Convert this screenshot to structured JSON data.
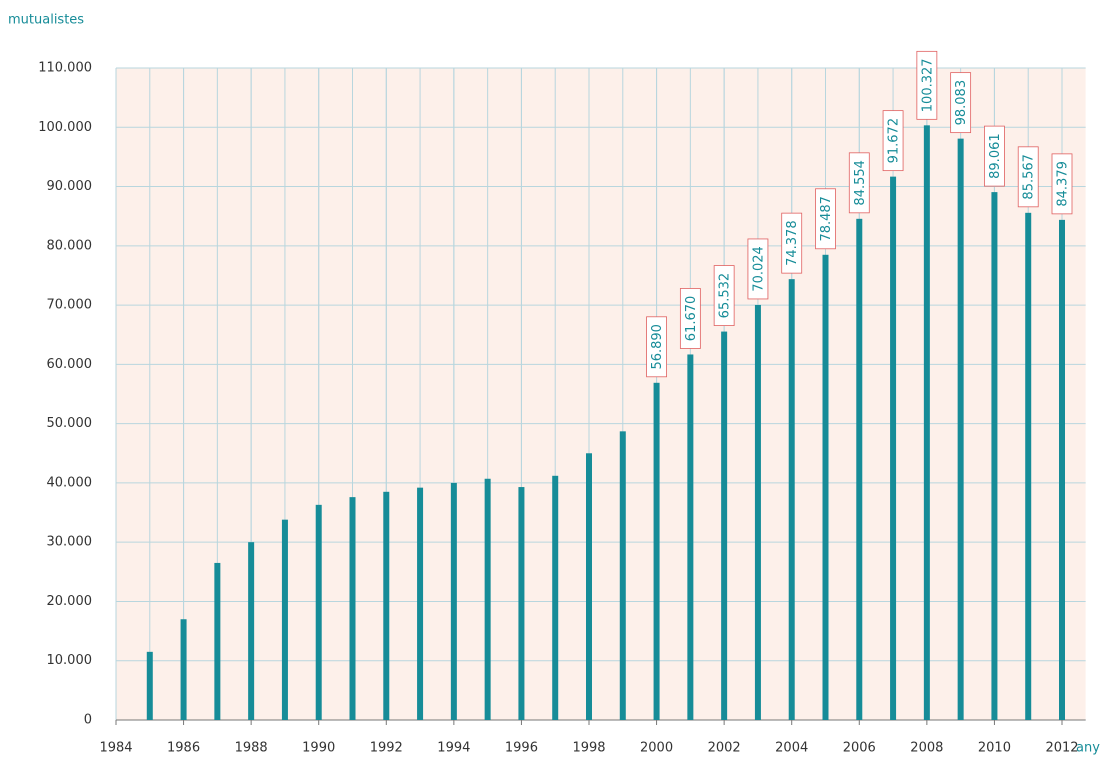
{
  "chart_data": {
    "type": "bar",
    "ylabel": "mutualistes",
    "xlabel": "any",
    "x": [
      1985,
      1986,
      1987,
      1988,
      1989,
      1990,
      1991,
      1992,
      1993,
      1994,
      1995,
      1996,
      1997,
      1998,
      1999,
      2000,
      2001,
      2002,
      2003,
      2004,
      2005,
      2006,
      2007,
      2008,
      2009,
      2010,
      2011,
      2012
    ],
    "values": [
      11500,
      17000,
      26500,
      30000,
      33800,
      36300,
      37600,
      38500,
      39200,
      40000,
      40700,
      39300,
      41200,
      45000,
      48700,
      56890,
      61670,
      65532,
      70024,
      74378,
      78487,
      84554,
      91672,
      100327,
      98083,
      89061,
      85567,
      84379
    ],
    "value_labels": [
      null,
      null,
      null,
      null,
      null,
      null,
      null,
      null,
      null,
      null,
      null,
      null,
      null,
      null,
      null,
      "56.890",
      "61.670",
      "65.532",
      "70.024",
      "74.378",
      "78.487",
      "84.554",
      "91.672",
      "100.327",
      "98.083",
      "89.061",
      "85.567",
      "84.379"
    ],
    "color": "#168c98",
    "xlim": [
      1984,
      2012.7
    ],
    "xticks": [
      1984,
      1986,
      1988,
      1990,
      1992,
      1994,
      1996,
      1998,
      2000,
      2002,
      2004,
      2006,
      2008,
      2010,
      2012
    ],
    "ylim": [
      0,
      110000
    ],
    "yticks": [
      0,
      {
        "value": 10000,
        "label": "10.000"
      },
      {
        "value": 20000,
        "label": "20.000"
      },
      {
        "value": 30000,
        "label": "30.000"
      },
      {
        "value": 40000,
        "label": "40.000"
      },
      {
        "value": 50000,
        "label": "50.000"
      },
      {
        "value": 60000,
        "label": "60.000"
      },
      {
        "value": 70000,
        "label": "70.000"
      },
      {
        "value": 80000,
        "label": "80.000"
      },
      {
        "value": 90000,
        "label": "90.000"
      },
      {
        "value": 100000,
        "label": "100.000"
      },
      {
        "value": 110000,
        "label": "110.000"
      }
    ],
    "grid": true
  }
}
